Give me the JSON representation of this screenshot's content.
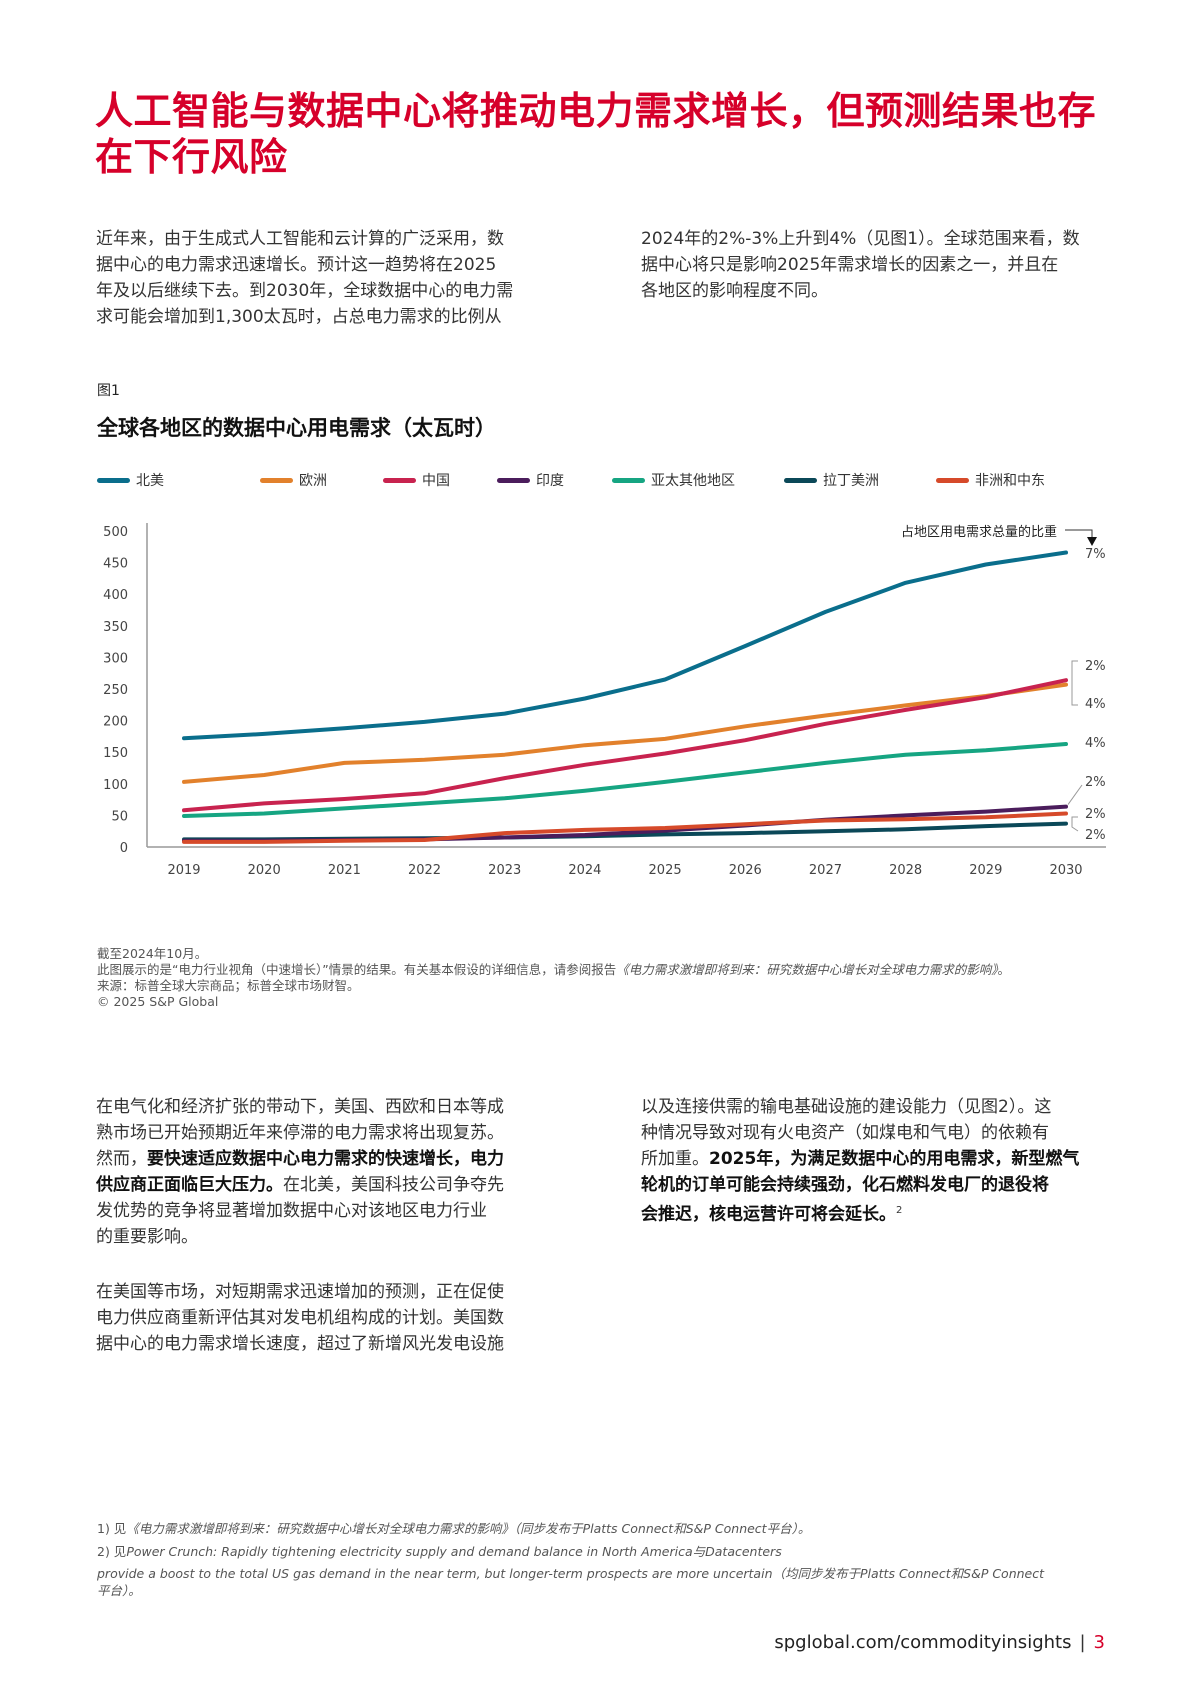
{
  "title_lines": [
    "人工智能与数据中心将推动电力需求增长，但预测结果也存",
    "在下行风险"
  ],
  "intro": {
    "left_lines": [
      "近年来，由于生成式人工智能和云计算的广泛采用，数",
      "据中心的电力需求迅速增长。预计这一趋势将在2025",
      "年及以后继续下去。到2030年，全球数据中心的电力需",
      "求可能会增加到1,300太瓦时，占总电力需求的比例从"
    ],
    "right_lines": [
      "2024年的2%-3%上升到4%（见图1）。全球范围来看，数",
      "据中心将只是影响2025年需求增长的因素之一，并且在",
      "各地区的影响程度不同。"
    ]
  },
  "figure": {
    "number": "图1",
    "title": "全球各地区的数据中心用电需求（太瓦时）",
    "notes": {
      "line1": "截至2024年10月。",
      "line2_prefix": "此图展示的是“电力行业视角（中速增长）”情景的结果。有关基本假设的详细信息，请参阅报告",
      "line2_italic": "《电力需求激增即将到来：研究数据中心增长对全球电力需求的影响》",
      "line2_suffix": "。",
      "line3": "来源：标普全球大宗商品；标普全球市场财智。",
      "line4": "© 2025 S&P Global"
    }
  },
  "chart_data": {
    "type": "line",
    "title": "全球各地区的数据中心用电需求（太瓦时）",
    "xlabel": "",
    "ylabel": "",
    "x": [
      2019,
      2020,
      2021,
      2022,
      2023,
      2024,
      2025,
      2026,
      2027,
      2028,
      2029,
      2030
    ],
    "ylim": [
      0,
      500
    ],
    "yticks": [
      0,
      50,
      100,
      150,
      200,
      250,
      300,
      350,
      400,
      450,
      500
    ],
    "grid": false,
    "legend_position": "top",
    "share_header": "占地区用电需求总量的比重",
    "series": [
      {
        "name": "北美",
        "color": "#0a6e8c",
        "values": [
          172,
          179,
          188,
          198,
          211,
          235,
          265,
          318,
          372,
          418,
          447,
          466
        ],
        "share_label": "7%"
      },
      {
        "name": "欧洲",
        "color": "#e2812c",
        "values": [
          103,
          114,
          133,
          138,
          146,
          161,
          171,
          191,
          208,
          224,
          239,
          257
        ],
        "share_label": "4%"
      },
      {
        "name": "中国",
        "color": "#c8234f",
        "values": [
          58,
          69,
          76,
          85,
          109,
          130,
          148,
          169,
          195,
          217,
          237,
          264
        ],
        "share_label": "2%"
      },
      {
        "name": "印度",
        "color": "#4b1d5c",
        "values": [
          10,
          10,
          11,
          12,
          15,
          19,
          26,
          34,
          43,
          50,
          56,
          64
        ],
        "share_label": "2%"
      },
      {
        "name": "亚太其他地区",
        "color": "#16a582",
        "values": [
          49,
          53,
          61,
          69,
          77,
          89,
          103,
          118,
          133,
          146,
          153,
          163
        ],
        "share_label": "4%"
      },
      {
        "name": "拉丁美洲",
        "color": "#0b4858",
        "values": [
          12,
          12,
          13,
          14,
          15,
          17,
          20,
          22,
          25,
          28,
          33,
          37
        ],
        "share_label": "2%"
      },
      {
        "name": "非洲和中东",
        "color": "#d64a2a",
        "values": [
          8,
          8,
          10,
          11,
          22,
          27,
          30,
          36,
          42,
          44,
          47,
          53
        ],
        "share_label": "2%"
      }
    ]
  },
  "body": {
    "left_p1": [
      [
        {
          "t": "在电气化和经济扩张的带动下，美国、西欧和日本等成"
        }
      ],
      [
        {
          "t": "熟市场已开始预期近年来停滞的电力需求将出现复苏。"
        }
      ],
      [
        {
          "t": "然而，"
        },
        {
          "t": "要快速适应数据中心电力需求的快速增长，电力",
          "b": true
        }
      ],
      [
        {
          "t": "供应商正面临巨大压力。",
          "b": true
        },
        {
          "t": "在北美，美国科技公司争夺先"
        }
      ],
      [
        {
          "t": "发优势的竞争将显著增加数据中心对该地区电力行业"
        }
      ],
      [
        {
          "t": "的重要影响。"
        }
      ]
    ],
    "left_p2": [
      [
        {
          "t": "在美国等市场，对短期需求迅速增加的预测，正在促使"
        }
      ],
      [
        {
          "t": "电力供应商重新评估其对发电机组构成的计划。美国数"
        }
      ],
      [
        {
          "t": "据中心的电力需求增长速度，超过了新增风光发电设施"
        }
      ]
    ],
    "right_p1": [
      [
        {
          "t": "以及连接供需的输电基础设施的建设能力（见图2）。这"
        }
      ],
      [
        {
          "t": "种情况导致对现有火电资产（如煤电和气电）的依赖有"
        }
      ],
      [
        {
          "t": "所加重。"
        },
        {
          "t": "2025年，为满足数据中心的用电需求，新型燃气",
          "b": true
        }
      ],
      [
        {
          "t": "轮机的订单可能会持续强劲，化石燃料发电厂的退役将",
          "b": true
        }
      ],
      [
        {
          "t": "会推迟，核电运营许可将会延长。",
          "b": true
        },
        {
          "t": "2",
          "sup": true
        }
      ]
    ]
  },
  "footnotes": {
    "fn1_prefix": "1)  见",
    "fn1_italic": "《电力需求激增即将到来：研究数据中心增长对全球电力需求的影响》（同步发布于Platts Connect和S&P Connect平台）。",
    "fn2_prefix": "2)  见",
    "fn2_italic": "Power Crunch: Rapidly tightening electricity supply and demand balance in North America与Datacenters",
    "fn2_line2": "provide a boost to the total US gas demand in the near term, but longer-term prospects are more uncertain（均同步发布于Platts Connect和S&P Connect",
    "fn2_line3": "平台）。"
  },
  "footer": {
    "url": "spglobal.com/commodityinsights",
    "separator": "|",
    "page": "3"
  }
}
